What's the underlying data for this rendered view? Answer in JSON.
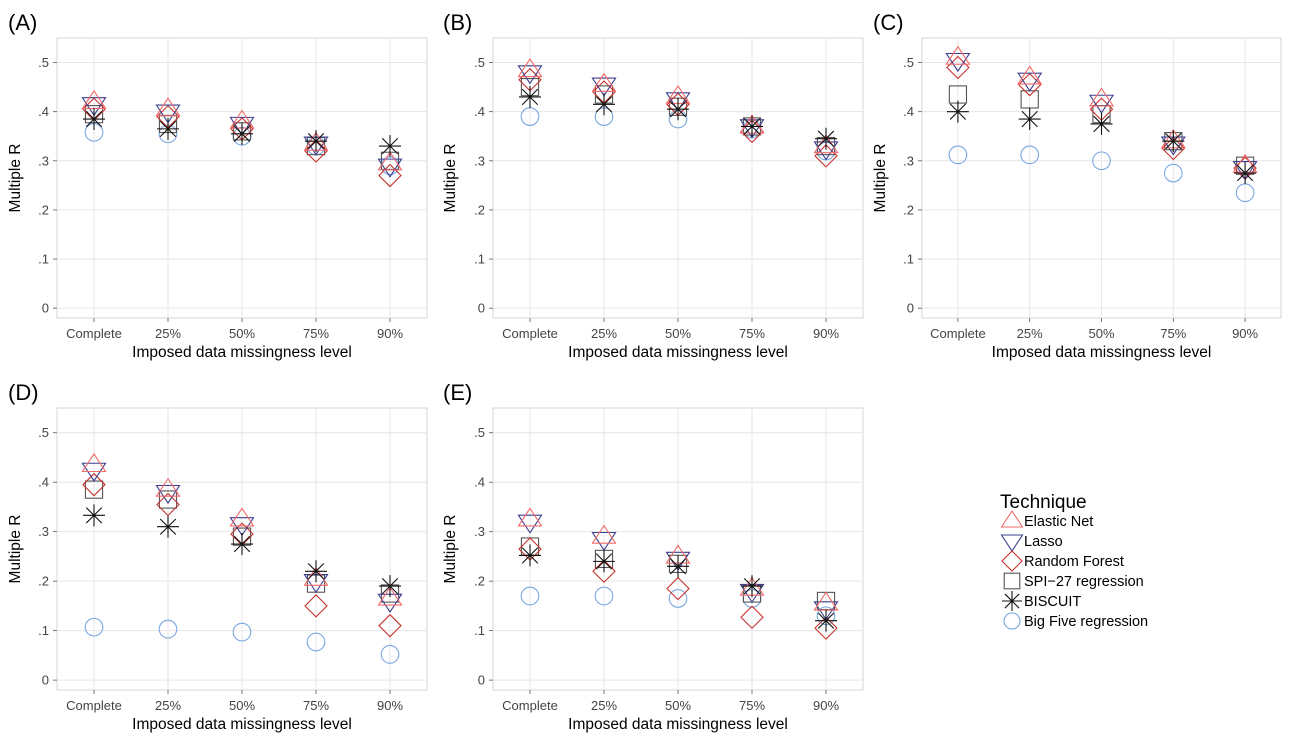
{
  "colors": {
    "elastic_net": "#f26b6b",
    "lasso": "#3b3f8f",
    "random_forest": "#c8322e",
    "spi27": "#555555",
    "biscuit": "#111111",
    "big_five": "#7aa8e0",
    "grid": "#e6e6e6",
    "frame": "#cccccc"
  },
  "chart_data": [
    {
      "type": "scatter",
      "panel": "(A)",
      "categories": [
        "Complete",
        "25%",
        "50%",
        "75%",
        "90%"
      ],
      "xlabel": "Imposed data missingness level",
      "ylabel": "Multiple R",
      "ylim": [
        -0.02,
        0.55
      ],
      "yticks": [
        "0",
        ".1",
        ".2",
        ".3",
        ".4",
        ".5"
      ],
      "grid": true,
      "series": [
        {
          "name": "Elastic Net",
          "marker": "triangle-up",
          "color_key": "elastic_net",
          "values": [
            0.42,
            0.405,
            0.38,
            0.335,
            0.295
          ]
        },
        {
          "name": "Lasso",
          "marker": "triangle-down",
          "color_key": "lasso",
          "values": [
            0.415,
            0.4,
            0.375,
            0.335,
            0.29
          ]
        },
        {
          "name": "Random Forest",
          "marker": "diamond",
          "color_key": "random_forest",
          "values": [
            0.405,
            0.39,
            0.365,
            0.32,
            0.27
          ]
        },
        {
          "name": "SPI−27 regression",
          "marker": "square",
          "color_key": "spi27",
          "values": [
            0.395,
            0.375,
            0.36,
            0.33,
            0.3
          ]
        },
        {
          "name": "BISCUIT",
          "marker": "asterisk",
          "color_key": "biscuit",
          "values": [
            0.385,
            0.365,
            0.355,
            0.34,
            0.33
          ]
        },
        {
          "name": "Big Five regression",
          "marker": "circle",
          "color_key": "big_five",
          "values": [
            0.358,
            0.355,
            0.35,
            0.33,
            0.29
          ]
        }
      ]
    },
    {
      "type": "scatter",
      "panel": "(B)",
      "categories": [
        "Complete",
        "25%",
        "50%",
        "75%",
        "90%"
      ],
      "xlabel": "Imposed data missingness level",
      "ylabel": "Multiple R",
      "ylim": [
        -0.02,
        0.55
      ],
      "yticks": [
        "0",
        ".1",
        ".2",
        ".3",
        ".4",
        ".5"
      ],
      "grid": true,
      "series": [
        {
          "name": "Elastic Net",
          "marker": "triangle-up",
          "color_key": "elastic_net",
          "values": [
            0.485,
            0.455,
            0.43,
            0.37,
            0.33
          ]
        },
        {
          "name": "Lasso",
          "marker": "triangle-down",
          "color_key": "lasso",
          "values": [
            0.48,
            0.455,
            0.425,
            0.37,
            0.325
          ]
        },
        {
          "name": "Random Forest",
          "marker": "diamond",
          "color_key": "random_forest",
          "values": [
            0.465,
            0.44,
            0.415,
            0.36,
            0.31
          ]
        },
        {
          "name": "SPI−27 regression",
          "marker": "square",
          "color_key": "spi27",
          "values": [
            0.45,
            0.435,
            0.41,
            0.37,
            0.33
          ]
        },
        {
          "name": "BISCUIT",
          "marker": "asterisk",
          "color_key": "biscuit",
          "values": [
            0.43,
            0.415,
            0.405,
            0.37,
            0.345
          ]
        },
        {
          "name": "Big Five regression",
          "marker": "circle",
          "color_key": "big_five",
          "values": [
            0.39,
            0.39,
            0.385,
            0.365,
            0.32
          ]
        }
      ]
    },
    {
      "type": "scatter",
      "panel": "(C)",
      "categories": [
        "Complete",
        "25%",
        "50%",
        "75%",
        "90%"
      ],
      "xlabel": "Imposed data missingness level",
      "ylabel": "Multiple R",
      "ylim": [
        -0.02,
        0.55
      ],
      "yticks": [
        "0",
        ".1",
        ".2",
        ".3",
        ".4",
        ".5"
      ],
      "grid": true,
      "series": [
        {
          "name": "Elastic Net",
          "marker": "triangle-up",
          "color_key": "elastic_net",
          "values": [
            0.51,
            0.47,
            0.425,
            0.34,
            0.29
          ]
        },
        {
          "name": "Lasso",
          "marker": "triangle-down",
          "color_key": "lasso",
          "values": [
            0.505,
            0.465,
            0.42,
            0.335,
            0.285
          ]
        },
        {
          "name": "Random Forest",
          "marker": "diamond",
          "color_key": "random_forest",
          "values": [
            0.49,
            0.455,
            0.405,
            0.325,
            0.285
          ]
        },
        {
          "name": "SPI−27 regression",
          "marker": "square",
          "color_key": "spi27",
          "values": [
            0.435,
            0.425,
            0.395,
            0.34,
            0.29
          ]
        },
        {
          "name": "BISCUIT",
          "marker": "asterisk",
          "color_key": "biscuit",
          "values": [
            0.4,
            0.385,
            0.375,
            0.34,
            0.275
          ]
        },
        {
          "name": "Big Five regression",
          "marker": "circle",
          "color_key": "big_five",
          "values": [
            0.312,
            0.312,
            0.3,
            0.275,
            0.235
          ]
        }
      ]
    },
    {
      "type": "scatter",
      "panel": "(D)",
      "categories": [
        "Complete",
        "25%",
        "50%",
        "75%",
        "90%"
      ],
      "xlabel": "Imposed data missingness level",
      "ylabel": "Multiple R",
      "ylim": [
        -0.02,
        0.55
      ],
      "yticks": [
        "0",
        ".1",
        ".2",
        ".3",
        ".4",
        ".5"
      ],
      "grid": true,
      "series": [
        {
          "name": "Elastic Net",
          "marker": "triangle-up",
          "color_key": "elastic_net",
          "values": [
            0.435,
            0.385,
            0.325,
            0.205,
            0.165
          ]
        },
        {
          "name": "Lasso",
          "marker": "triangle-down",
          "color_key": "lasso",
          "values": [
            0.425,
            0.38,
            0.315,
            0.2,
            0.16
          ]
        },
        {
          "name": "Random Forest",
          "marker": "diamond",
          "color_key": "random_forest",
          "values": [
            0.395,
            0.355,
            0.295,
            0.15,
            0.11
          ]
        },
        {
          "name": "SPI−27 regression",
          "marker": "square",
          "color_key": "spi27",
          "values": [
            0.385,
            0.365,
            0.29,
            0.195,
            0.175
          ]
        },
        {
          "name": "BISCUIT",
          "marker": "asterisk",
          "color_key": "biscuit",
          "values": [
            0.333,
            0.31,
            0.275,
            0.22,
            0.19
          ]
        },
        {
          "name": "Big Five regression",
          "marker": "circle",
          "color_key": "big_five",
          "values": [
            0.107,
            0.103,
            0.097,
            0.077,
            0.052
          ]
        }
      ]
    },
    {
      "type": "scatter",
      "panel": "(E)",
      "categories": [
        "Complete",
        "25%",
        "50%",
        "75%",
        "90%"
      ],
      "xlabel": "Imposed data missingness level",
      "ylabel": "Multiple R",
      "ylim": [
        -0.02,
        0.55
      ],
      "yticks": [
        "0",
        ".1",
        ".2",
        ".3",
        ".4",
        ".5"
      ],
      "grid": true,
      "series": [
        {
          "name": "Elastic Net",
          "marker": "triangle-up",
          "color_key": "elastic_net",
          "values": [
            0.325,
            0.29,
            0.25,
            0.185,
            0.155
          ]
        },
        {
          "name": "Lasso",
          "marker": "triangle-down",
          "color_key": "lasso",
          "values": [
            0.32,
            0.285,
            0.245,
            0.18,
            0.145
          ]
        },
        {
          "name": "Random Forest",
          "marker": "diamond",
          "color_key": "random_forest",
          "values": [
            0.265,
            0.22,
            0.185,
            0.127,
            0.105
          ]
        },
        {
          "name": "SPI−27 regression",
          "marker": "square",
          "color_key": "spi27",
          "values": [
            0.27,
            0.245,
            0.235,
            0.175,
            0.16
          ]
        },
        {
          "name": "BISCUIT",
          "marker": "asterisk",
          "color_key": "biscuit",
          "values": [
            0.252,
            0.24,
            0.23,
            0.19,
            0.12
          ]
        },
        {
          "name": "Big Five regression",
          "marker": "circle",
          "color_key": "big_five",
          "values": [
            0.17,
            0.17,
            0.165,
            0.165,
            0.13
          ]
        }
      ]
    }
  ],
  "legend": {
    "title": "Technique",
    "placement": "right",
    "items": [
      {
        "label": "Elastic Net",
        "marker": "triangle-up",
        "color_key": "elastic_net"
      },
      {
        "label": "Lasso",
        "marker": "triangle-down",
        "color_key": "lasso"
      },
      {
        "label": "Random Forest",
        "marker": "diamond",
        "color_key": "random_forest"
      },
      {
        "label": "SPI−27 regression",
        "marker": "square",
        "color_key": "spi27"
      },
      {
        "label": "BISCUIT",
        "marker": "asterisk",
        "color_key": "biscuit"
      },
      {
        "label": "Big Five regression",
        "marker": "circle",
        "color_key": "big_five"
      }
    ]
  }
}
